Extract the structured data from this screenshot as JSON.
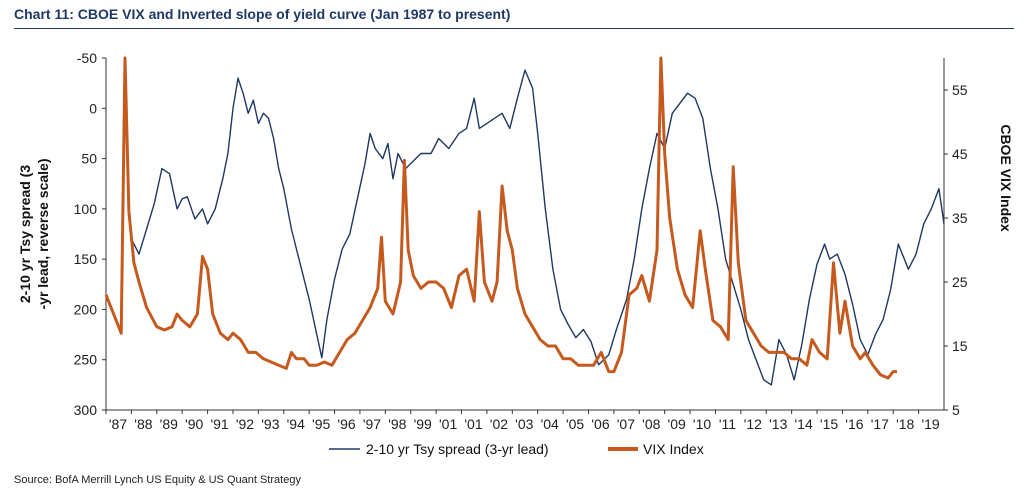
{
  "title": "Chart 11: CBOE VIX and Inverted slope of yield curve (Jan 1987 to present)",
  "source": "Source: BofA Merrill Lynch US Equity & US Quant Strategy",
  "chart_data": {
    "type": "line",
    "y_left": {
      "label_lines": [
        "2-10 yr Tsy spread (3",
        "-yr lead, reverse scale)"
      ],
      "range": [
        -50,
        300
      ],
      "reversed": true,
      "ticks": [
        "-50",
        "0",
        "50",
        "100",
        "150",
        "200",
        "250",
        "300"
      ]
    },
    "y_right": {
      "label": "CBOE VIX Index",
      "range": [
        5,
        60
      ],
      "ticks": [
        "5",
        "15",
        "25",
        "35",
        "45",
        "55"
      ]
    },
    "x_ticks": [
      "'87",
      "'88",
      "'89",
      "'90",
      "'91",
      "'92",
      "'93",
      "'94",
      "'95",
      "'96",
      "'97",
      "'98",
      "'99",
      "'01",
      "'01",
      "'02",
      "'03",
      "'04",
      "'05",
      "'06",
      "'07",
      "'08",
      "'09",
      "'10",
      "'11",
      "'12",
      "'13",
      "'14",
      "'15",
      "'16",
      "'17",
      "'18",
      "'19"
    ],
    "x_range": [
      1987,
      2020
    ],
    "grid": false,
    "legend_position": "bottom",
    "series": [
      {
        "name": "2-10 yr Tsy spread (3-yr lead)",
        "axis": "left",
        "color": "#1f3864",
        "points": [
          [
            1988.0,
            130
          ],
          [
            1988.3,
            145
          ],
          [
            1988.6,
            120
          ],
          [
            1988.9,
            95
          ],
          [
            1989.2,
            60
          ],
          [
            1989.5,
            65
          ],
          [
            1989.8,
            100
          ],
          [
            1990.0,
            90
          ],
          [
            1990.2,
            88
          ],
          [
            1990.5,
            110
          ],
          [
            1990.8,
            100
          ],
          [
            1991.0,
            115
          ],
          [
            1991.3,
            100
          ],
          [
            1991.6,
            70
          ],
          [
            1991.8,
            45
          ],
          [
            1992.0,
            0
          ],
          [
            1992.2,
            -30
          ],
          [
            1992.4,
            -15
          ],
          [
            1992.6,
            5
          ],
          [
            1992.8,
            -8
          ],
          [
            1993.0,
            15
          ],
          [
            1993.2,
            5
          ],
          [
            1993.4,
            10
          ],
          [
            1993.6,
            30
          ],
          [
            1993.8,
            60
          ],
          [
            1994.0,
            80
          ],
          [
            1994.3,
            120
          ],
          [
            1994.6,
            150
          ],
          [
            1995.0,
            190
          ],
          [
            1995.3,
            225
          ],
          [
            1995.5,
            248
          ],
          [
            1995.7,
            210
          ],
          [
            1996.0,
            170
          ],
          [
            1996.3,
            140
          ],
          [
            1996.6,
            125
          ],
          [
            1996.9,
            90
          ],
          [
            1997.2,
            55
          ],
          [
            1997.4,
            25
          ],
          [
            1997.6,
            40
          ],
          [
            1997.9,
            50
          ],
          [
            1998.1,
            35
          ],
          [
            1998.3,
            70
          ],
          [
            1998.5,
            45
          ],
          [
            1998.8,
            60
          ],
          [
            1999.0,
            55
          ],
          [
            1999.4,
            45
          ],
          [
            1999.8,
            45
          ],
          [
            2000.1,
            30
          ],
          [
            2000.5,
            40
          ],
          [
            2000.9,
            25
          ],
          [
            2001.2,
            20
          ],
          [
            2001.5,
            -10
          ],
          [
            2001.7,
            20
          ],
          [
            2002.0,
            15
          ],
          [
            2002.3,
            10
          ],
          [
            2002.6,
            5
          ],
          [
            2002.9,
            20
          ],
          [
            2003.2,
            -10
          ],
          [
            2003.5,
            -38
          ],
          [
            2003.8,
            -20
          ],
          [
            2004.0,
            25
          ],
          [
            2004.3,
            100
          ],
          [
            2004.6,
            160
          ],
          [
            2004.9,
            200
          ],
          [
            2005.2,
            215
          ],
          [
            2005.5,
            228
          ],
          [
            2005.8,
            220
          ],
          [
            2006.1,
            232
          ],
          [
            2006.4,
            255
          ],
          [
            2006.8,
            245
          ],
          [
            2007.1,
            220
          ],
          [
            2007.5,
            190
          ],
          [
            2007.8,
            150
          ],
          [
            2008.1,
            100
          ],
          [
            2008.4,
            60
          ],
          [
            2008.7,
            25
          ],
          [
            2009.0,
            40
          ],
          [
            2009.3,
            5
          ],
          [
            2009.6,
            -5
          ],
          [
            2009.9,
            -15
          ],
          [
            2010.2,
            -10
          ],
          [
            2010.5,
            10
          ],
          [
            2010.8,
            60
          ],
          [
            2011.1,
            100
          ],
          [
            2011.4,
            150
          ],
          [
            2011.7,
            175
          ],
          [
            2012.0,
            200
          ],
          [
            2012.3,
            230
          ],
          [
            2012.6,
            250
          ],
          [
            2012.9,
            270
          ],
          [
            2013.2,
            275
          ],
          [
            2013.5,
            230
          ],
          [
            2013.8,
            245
          ],
          [
            2014.1,
            270
          ],
          [
            2014.4,
            235
          ],
          [
            2014.7,
            190
          ],
          [
            2015.0,
            155
          ],
          [
            2015.3,
            135
          ],
          [
            2015.5,
            150
          ],
          [
            2015.8,
            145
          ],
          [
            2016.1,
            165
          ],
          [
            2016.4,
            195
          ],
          [
            2016.7,
            230
          ],
          [
            2017.0,
            245
          ],
          [
            2017.3,
            225
          ],
          [
            2017.6,
            210
          ],
          [
            2017.9,
            180
          ],
          [
            2018.2,
            135
          ],
          [
            2018.6,
            160
          ],
          [
            2018.9,
            145
          ],
          [
            2019.2,
            115
          ],
          [
            2019.5,
            100
          ],
          [
            2019.8,
            80
          ],
          [
            2020.0,
            115
          ]
        ]
      },
      {
        "name": "VIX Index",
        "axis": "right",
        "color": "#c65a1e",
        "points": [
          [
            1987.0,
            23
          ],
          [
            1987.3,
            20
          ],
          [
            1987.6,
            17
          ],
          [
            1987.75,
            60
          ],
          [
            1987.9,
            36
          ],
          [
            1988.1,
            28
          ],
          [
            1988.3,
            25
          ],
          [
            1988.6,
            21
          ],
          [
            1989.0,
            18
          ],
          [
            1989.3,
            17.5
          ],
          [
            1989.6,
            18
          ],
          [
            1989.8,
            20
          ],
          [
            1990.0,
            19
          ],
          [
            1990.3,
            18
          ],
          [
            1990.6,
            20
          ],
          [
            1990.8,
            29
          ],
          [
            1991.0,
            27
          ],
          [
            1991.2,
            20
          ],
          [
            1991.5,
            17
          ],
          [
            1991.8,
            16
          ],
          [
            1992.0,
            17
          ],
          [
            1992.3,
            16
          ],
          [
            1992.6,
            14
          ],
          [
            1992.9,
            14
          ],
          [
            1993.2,
            13
          ],
          [
            1993.5,
            12.5
          ],
          [
            1993.8,
            12
          ],
          [
            1994.1,
            11.5
          ],
          [
            1994.3,
            14
          ],
          [
            1994.5,
            13
          ],
          [
            1994.8,
            13
          ],
          [
            1995.0,
            12
          ],
          [
            1995.3,
            12
          ],
          [
            1995.6,
            12.5
          ],
          [
            1995.9,
            12
          ],
          [
            1996.2,
            14
          ],
          [
            1996.5,
            16
          ],
          [
            1996.8,
            17
          ],
          [
            1997.1,
            19
          ],
          [
            1997.4,
            21
          ],
          [
            1997.7,
            24
          ],
          [
            1997.85,
            32
          ],
          [
            1998.0,
            22
          ],
          [
            1998.3,
            20
          ],
          [
            1998.6,
            25
          ],
          [
            1998.75,
            44
          ],
          [
            1998.9,
            30
          ],
          [
            1999.1,
            26
          ],
          [
            1999.4,
            24
          ],
          [
            1999.7,
            25
          ],
          [
            2000.0,
            25
          ],
          [
            2000.3,
            24
          ],
          [
            2000.6,
            21
          ],
          [
            2000.9,
            26
          ],
          [
            2001.2,
            27
          ],
          [
            2001.5,
            22
          ],
          [
            2001.7,
            36
          ],
          [
            2001.9,
            25
          ],
          [
            2002.2,
            22
          ],
          [
            2002.4,
            25
          ],
          [
            2002.6,
            40
          ],
          [
            2002.8,
            33
          ],
          [
            2003.0,
            30
          ],
          [
            2003.2,
            24
          ],
          [
            2003.5,
            20
          ],
          [
            2003.8,
            18
          ],
          [
            2004.1,
            16
          ],
          [
            2004.4,
            15
          ],
          [
            2004.7,
            15
          ],
          [
            2005.0,
            13
          ],
          [
            2005.3,
            13
          ],
          [
            2005.6,
            12
          ],
          [
            2005.9,
            12
          ],
          [
            2006.2,
            12
          ],
          [
            2006.5,
            14
          ],
          [
            2006.8,
            11
          ],
          [
            2007.0,
            11
          ],
          [
            2007.3,
            14
          ],
          [
            2007.6,
            23
          ],
          [
            2007.9,
            24
          ],
          [
            2008.1,
            26
          ],
          [
            2008.4,
            22
          ],
          [
            2008.7,
            30
          ],
          [
            2008.85,
            60
          ],
          [
            2009.0,
            45
          ],
          [
            2009.2,
            35
          ],
          [
            2009.5,
            27
          ],
          [
            2009.8,
            23
          ],
          [
            2010.1,
            21
          ],
          [
            2010.4,
            33
          ],
          [
            2010.6,
            27
          ],
          [
            2010.9,
            19
          ],
          [
            2011.2,
            18
          ],
          [
            2011.5,
            16
          ],
          [
            2011.7,
            43
          ],
          [
            2011.9,
            28
          ],
          [
            2012.2,
            19
          ],
          [
            2012.5,
            17
          ],
          [
            2012.8,
            15
          ],
          [
            2013.1,
            14
          ],
          [
            2013.4,
            14
          ],
          [
            2013.7,
            14
          ],
          [
            2014.0,
            13
          ],
          [
            2014.3,
            13
          ],
          [
            2014.6,
            12
          ],
          [
            2014.8,
            16
          ],
          [
            2015.1,
            14
          ],
          [
            2015.4,
            13
          ],
          [
            2015.65,
            28
          ],
          [
            2015.9,
            17
          ],
          [
            2016.1,
            22
          ],
          [
            2016.4,
            15
          ],
          [
            2016.7,
            13
          ],
          [
            2016.9,
            14
          ],
          [
            2017.2,
            12
          ],
          [
            2017.5,
            10.5
          ],
          [
            2017.8,
            10
          ],
          [
            2018.0,
            11
          ],
          [
            2018.15,
            11
          ]
        ]
      }
    ]
  }
}
